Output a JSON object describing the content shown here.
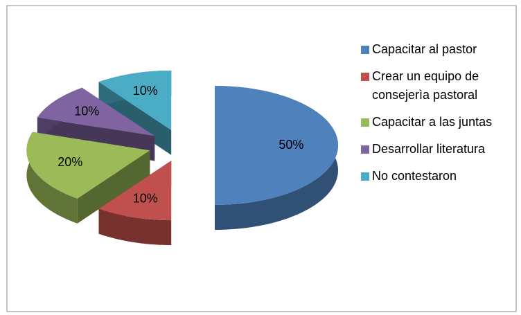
{
  "chart_data": {
    "type": "pie3d",
    "categories": [
      "Capacitar al pastor",
      "Crear un equipo de consejerìa pastoral",
      "Capacitar a las juntas",
      "Desarrollar literatura",
      "No contestaron"
    ],
    "values": [
      50,
      10,
      20,
      10,
      10
    ],
    "value_labels": [
      "50%",
      "10%",
      "20%",
      "10%",
      "10%"
    ],
    "colors": [
      "#4f81bd",
      "#c0504d",
      "#9bbb59",
      "#8064a2",
      "#4bacc6"
    ],
    "legend": "right"
  }
}
